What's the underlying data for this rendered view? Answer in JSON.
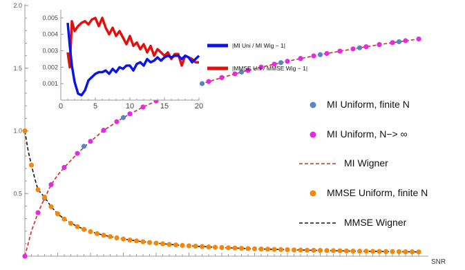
{
  "chart_data": [
    {
      "type": "scatter",
      "title": "",
      "xlabel": "SNR",
      "ylabel": "",
      "xlim": [
        0,
        60
      ],
      "ylim": [
        0,
        2.0
      ],
      "yticks": [
        "0.5",
        "1.0",
        "1.5",
        "2.0"
      ],
      "x_tick_count": 60,
      "grid": false,
      "legend_position": "right",
      "series": [
        {
          "name": "MI Uniform, finite N",
          "kind": "points",
          "color": "#5b84c3",
          "x": [
            3,
            6,
            9,
            12,
            15,
            18,
            21,
            24,
            27,
            30,
            33,
            36,
            39,
            42,
            45,
            48,
            51,
            54,
            57
          ],
          "y": [
            0.462,
            0.708,
            0.877,
            1.004,
            1.106,
            1.19,
            1.261,
            1.323,
            1.377,
            1.425,
            1.469,
            1.508,
            1.544,
            1.577,
            1.608,
            1.636,
            1.663,
            1.688,
            1.711
          ]
        },
        {
          "name": "MI Uniform, N−> ∞",
          "kind": "points",
          "color": "#e62ae1",
          "x": [
            0,
            2,
            4,
            6,
            8,
            10,
            12,
            14,
            16,
            18,
            20,
            22,
            24,
            26,
            28,
            30,
            32,
            34,
            36,
            38,
            40,
            42,
            44,
            46,
            48,
            50,
            52,
            54,
            56,
            58,
            60
          ],
          "y": [
            0.0,
            0.347,
            0.571,
            0.708,
            0.82,
            0.916,
            1.004,
            1.073,
            1.136,
            1.19,
            1.238,
            1.282,
            1.323,
            1.36,
            1.394,
            1.425,
            1.455,
            1.482,
            1.508,
            1.532,
            1.555,
            1.577,
            1.598,
            1.617,
            1.636,
            1.654,
            1.671,
            1.688,
            1.704,
            1.719,
            1.733
          ]
        },
        {
          "name": "MI Wigner",
          "kind": "dashed-line",
          "color": "#e3231f",
          "x": [
            0,
            1,
            2,
            3,
            4,
            5,
            6,
            8,
            10,
            12,
            15,
            18,
            21,
            24,
            27,
            30,
            33,
            36,
            39,
            42,
            45,
            48,
            51,
            54,
            57,
            60
          ],
          "y": [
            0.0,
            0.2,
            0.347,
            0.462,
            0.571,
            0.647,
            0.708,
            0.82,
            0.916,
            1.004,
            1.106,
            1.19,
            1.261,
            1.323,
            1.377,
            1.425,
            1.469,
            1.508,
            1.544,
            1.577,
            1.608,
            1.636,
            1.663,
            1.688,
            1.711,
            1.733
          ]
        },
        {
          "name": "MMSE Uniform, finite N",
          "kind": "points",
          "color": "#f2890d",
          "x": [
            0,
            1,
            2,
            3,
            4,
            5,
            6,
            7,
            8,
            9,
            10,
            11,
            12,
            13,
            14,
            15,
            16,
            17,
            18,
            19,
            20,
            21,
            22,
            23,
            24,
            25,
            26,
            27,
            28,
            29,
            30,
            31,
            32,
            33,
            34,
            35,
            36,
            37,
            38,
            39,
            40,
            41,
            42,
            43,
            44,
            45,
            46,
            47,
            48,
            49,
            50,
            51,
            52,
            53,
            54,
            55,
            56,
            57,
            58,
            59,
            60
          ],
          "y": [
            1.0,
            0.727,
            0.53,
            0.471,
            0.395,
            0.338,
            0.296,
            0.262,
            0.236,
            0.214,
            0.196,
            0.18,
            0.167,
            0.156,
            0.146,
            0.137,
            0.129,
            0.122,
            0.115,
            0.109,
            0.104,
            0.099,
            0.094,
            0.09,
            0.086,
            0.083,
            0.08,
            0.077,
            0.074,
            0.071,
            0.069,
            0.067,
            0.065,
            0.063,
            0.061,
            0.059,
            0.057,
            0.056,
            0.054,
            0.053,
            0.052,
            0.05,
            0.049,
            0.048,
            0.047,
            0.046,
            0.045,
            0.044,
            0.043,
            0.042,
            0.041,
            0.04,
            0.04,
            0.039,
            0.038,
            0.037,
            0.037,
            0.036,
            0.035,
            0.035,
            0.034
          ]
        },
        {
          "name": "MMSE Wigner",
          "kind": "dashed-line",
          "color": "#111111",
          "x": [
            0,
            0.5,
            1,
            1.5,
            2,
            3,
            4,
            5,
            6,
            8,
            10,
            12,
            15,
            18,
            21,
            24,
            27,
            30,
            35,
            40,
            45,
            50,
            55,
            60
          ],
          "y": [
            1.0,
            0.84,
            0.727,
            0.62,
            0.53,
            0.471,
            0.395,
            0.338,
            0.296,
            0.236,
            0.196,
            0.167,
            0.137,
            0.115,
            0.099,
            0.086,
            0.077,
            0.069,
            0.059,
            0.052,
            0.046,
            0.041,
            0.037,
            0.034
          ]
        }
      ]
    },
    {
      "type": "line",
      "title": "",
      "xlabel": "",
      "ylabel": "",
      "xlim": [
        0,
        20
      ],
      "ylim": [
        0,
        0.0055
      ],
      "xticks": [
        "0",
        "5",
        "10",
        "15",
        "20"
      ],
      "yticks": [
        "0.001",
        "0.002",
        "0.003",
        "0.004",
        "0.005"
      ],
      "grid": false,
      "legend_position": "right",
      "series": [
        {
          "name": "|MI Uni / MI Wig − 1|",
          "color": "#0a14e6",
          "x": [
            1,
            1.3,
            1.6,
            2,
            2.5,
            3,
            3.5,
            4,
            4.5,
            5,
            5.5,
            6,
            6.5,
            7,
            7.5,
            8,
            8.5,
            9,
            9.5,
            10,
            10.5,
            11,
            11.5,
            12,
            12.5,
            13,
            13.5,
            14,
            14.5,
            15,
            15.5,
            16,
            16.5,
            17,
            17.5,
            18,
            18.5,
            19,
            19.5,
            20
          ],
          "y": [
            0.0047,
            0.0033,
            0.0021,
            0.0011,
            0.0004,
            0.0003,
            0.0006,
            0.0012,
            0.0014,
            0.0016,
            0.0017,
            0.0017,
            0.0018,
            0.0016,
            0.0019,
            0.0017,
            0.002,
            0.0019,
            0.0021,
            0.0021,
            0.0018,
            0.0022,
            0.0023,
            0.0021,
            0.0025,
            0.0023,
            0.0024,
            0.0026,
            0.0024,
            0.0026,
            0.0027,
            0.0026,
            0.0027,
            0.0027,
            0.0025,
            0.0027,
            0.0026,
            0.0023,
            0.0025,
            0.0027
          ]
        },
        {
          "name": "|MMSE Uni / MMSE Wig − 1|",
          "color": "#e30f0f",
          "x": [
            1,
            1.3,
            1.6,
            2,
            2.5,
            3,
            3.5,
            4,
            4.5,
            5,
            5.5,
            6,
            6.5,
            7,
            7.5,
            8,
            8.5,
            9,
            9.5,
            10,
            10.5,
            11,
            11.5,
            12,
            12.5,
            13,
            13.5,
            14,
            14.5,
            15,
            15.5,
            16,
            16.5,
            17,
            17.5,
            18,
            18.5,
            19,
            19.5,
            20
          ],
          "y": [
            0.0029,
            0.002,
            0.0048,
            0.0042,
            0.0045,
            0.0047,
            0.0048,
            0.0046,
            0.0049,
            0.005,
            0.0045,
            0.005,
            0.0044,
            0.004,
            0.0044,
            0.0039,
            0.0042,
            0.0038,
            0.0034,
            0.0039,
            0.0033,
            0.0035,
            0.0031,
            0.0034,
            0.0029,
            0.0033,
            0.0027,
            0.0031,
            0.0029,
            0.0027,
            0.0029,
            0.0025,
            0.0028,
            0.0028,
            0.0021,
            0.0027,
            0.0026,
            0.0025,
            0.0023,
            0.0023
          ]
        }
      ]
    }
  ]
}
